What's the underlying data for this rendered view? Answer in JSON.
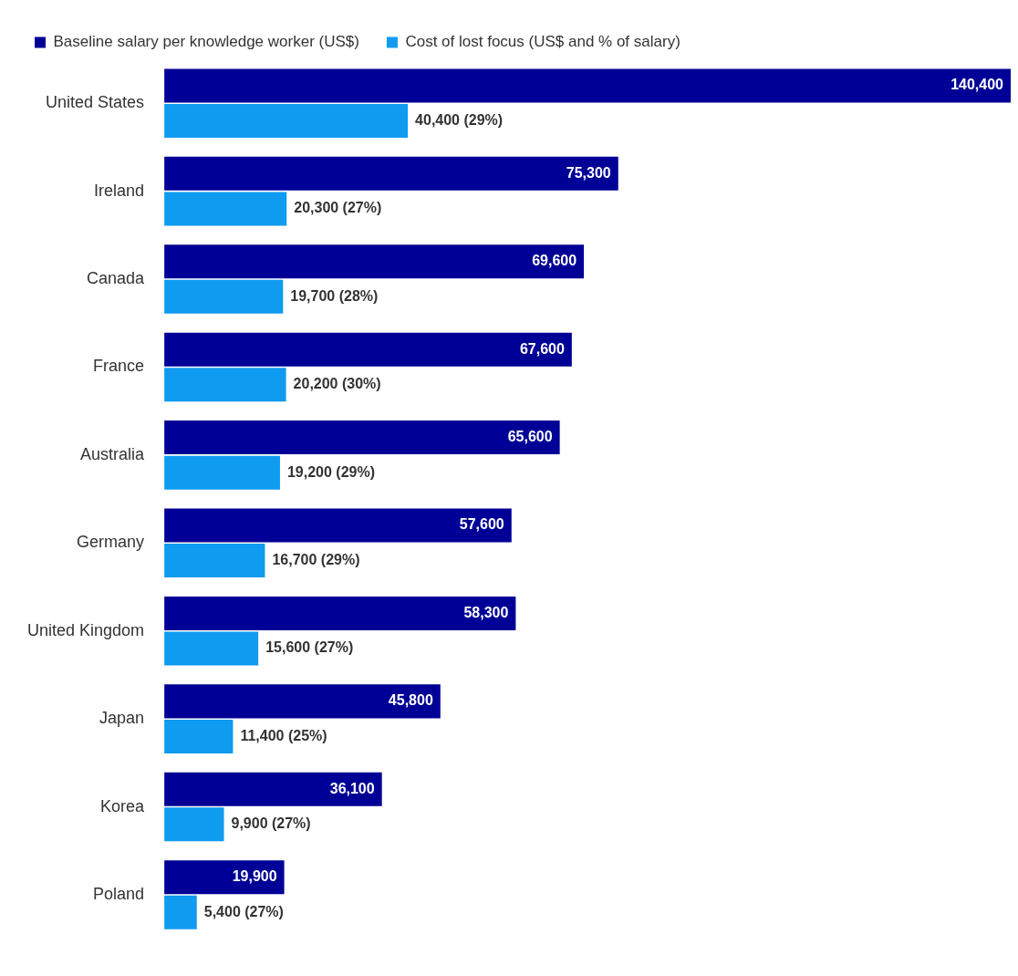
{
  "chart_data": {
    "type": "bar",
    "orientation": "horizontal",
    "categories": [
      "United States",
      "Ireland",
      "Canada",
      "France",
      "Australia",
      "Germany",
      "United Kingdom",
      "Japan",
      "Korea",
      "Poland"
    ],
    "series": [
      {
        "name": "Baseline salary per knowledge worker (US$)",
        "color": "#000096",
        "values": [
          140400,
          75300,
          69600,
          67600,
          65600,
          57600,
          58300,
          45800,
          36100,
          19900
        ],
        "value_labels": [
          "140,400",
          "75,300",
          "69,600",
          "67,600",
          "65,600",
          "57,600",
          "58,300",
          "45,800",
          "36,100",
          "19,900"
        ]
      },
      {
        "name": "Cost of lost focus (US$ and % of salary)",
        "color": "#0f9bf0",
        "values": [
          40400,
          20300,
          19700,
          20200,
          19200,
          16700,
          15600,
          11400,
          9900,
          5400
        ],
        "value_labels": [
          "40,400 (29%)",
          "20,300 (27%)",
          "19,700 (28%)",
          "20,200 (30%)",
          "19,200 (29%)",
          "16,700 (29%)",
          "15,600 (27%)",
          "11,400 (25%)",
          "9,900 (27%)",
          "5,400 (27%)"
        ]
      }
    ],
    "xlim": [
      0,
      140400
    ],
    "legend": "top left",
    "grid": false,
    "tick_labels": "y"
  }
}
